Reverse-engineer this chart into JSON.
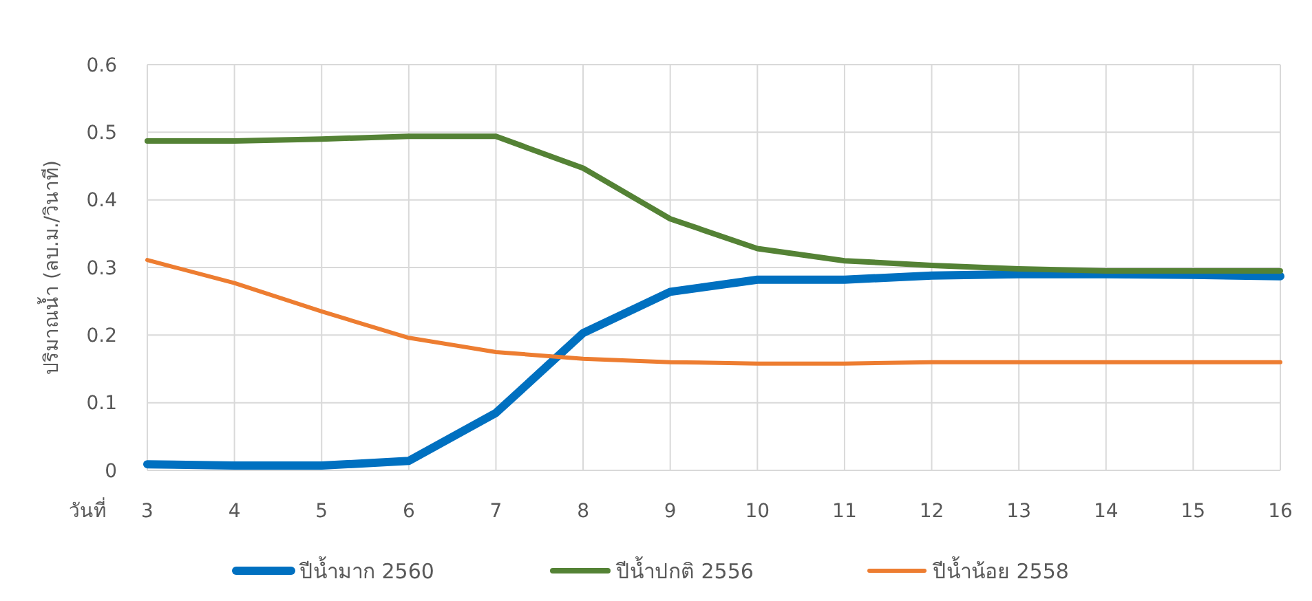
{
  "chart_data": {
    "type": "line",
    "xlabel": "วันที่",
    "ylabel": "ปริมาณน้ำ (ลบ.ม./วินาที)",
    "x": [
      3,
      4,
      5,
      6,
      7,
      8,
      9,
      10,
      11,
      12,
      13,
      14,
      15,
      16
    ],
    "xlim": [
      3,
      16
    ],
    "xticks": [
      3,
      4,
      5,
      6,
      7,
      8,
      9,
      10,
      11,
      12,
      13,
      14,
      15,
      16
    ],
    "ylim": [
      0,
      0.6
    ],
    "yticks": [
      0,
      0.1,
      0.2,
      0.3,
      0.4,
      0.5,
      0.6
    ],
    "grid": true,
    "legend": "bottom",
    "marker": "none",
    "line_style": "solid",
    "series": [
      {
        "name": "ปีน้ำมาก 2560",
        "color": "#0070c0",
        "values": [
          0.009,
          0.007,
          0.007,
          0.014,
          0.085,
          0.203,
          0.264,
          0.282,
          0.282,
          0.288,
          0.29,
          0.29,
          0.289,
          0.287
        ]
      },
      {
        "name": "ปีน้ำปกติ 2556",
        "color": "#548235",
        "values": [
          0.487,
          0.487,
          0.49,
          0.494,
          0.494,
          0.447,
          0.372,
          0.328,
          0.31,
          0.303,
          0.298,
          0.295,
          0.295,
          0.295
        ]
      },
      {
        "name": "ปีน้ำน้อย 2558",
        "color": "#ed7d31",
        "values": [
          0.311,
          0.277,
          0.235,
          0.196,
          0.175,
          0.165,
          0.16,
          0.158,
          0.158,
          0.16,
          0.16,
          0.16,
          0.16,
          0.16
        ]
      }
    ]
  }
}
